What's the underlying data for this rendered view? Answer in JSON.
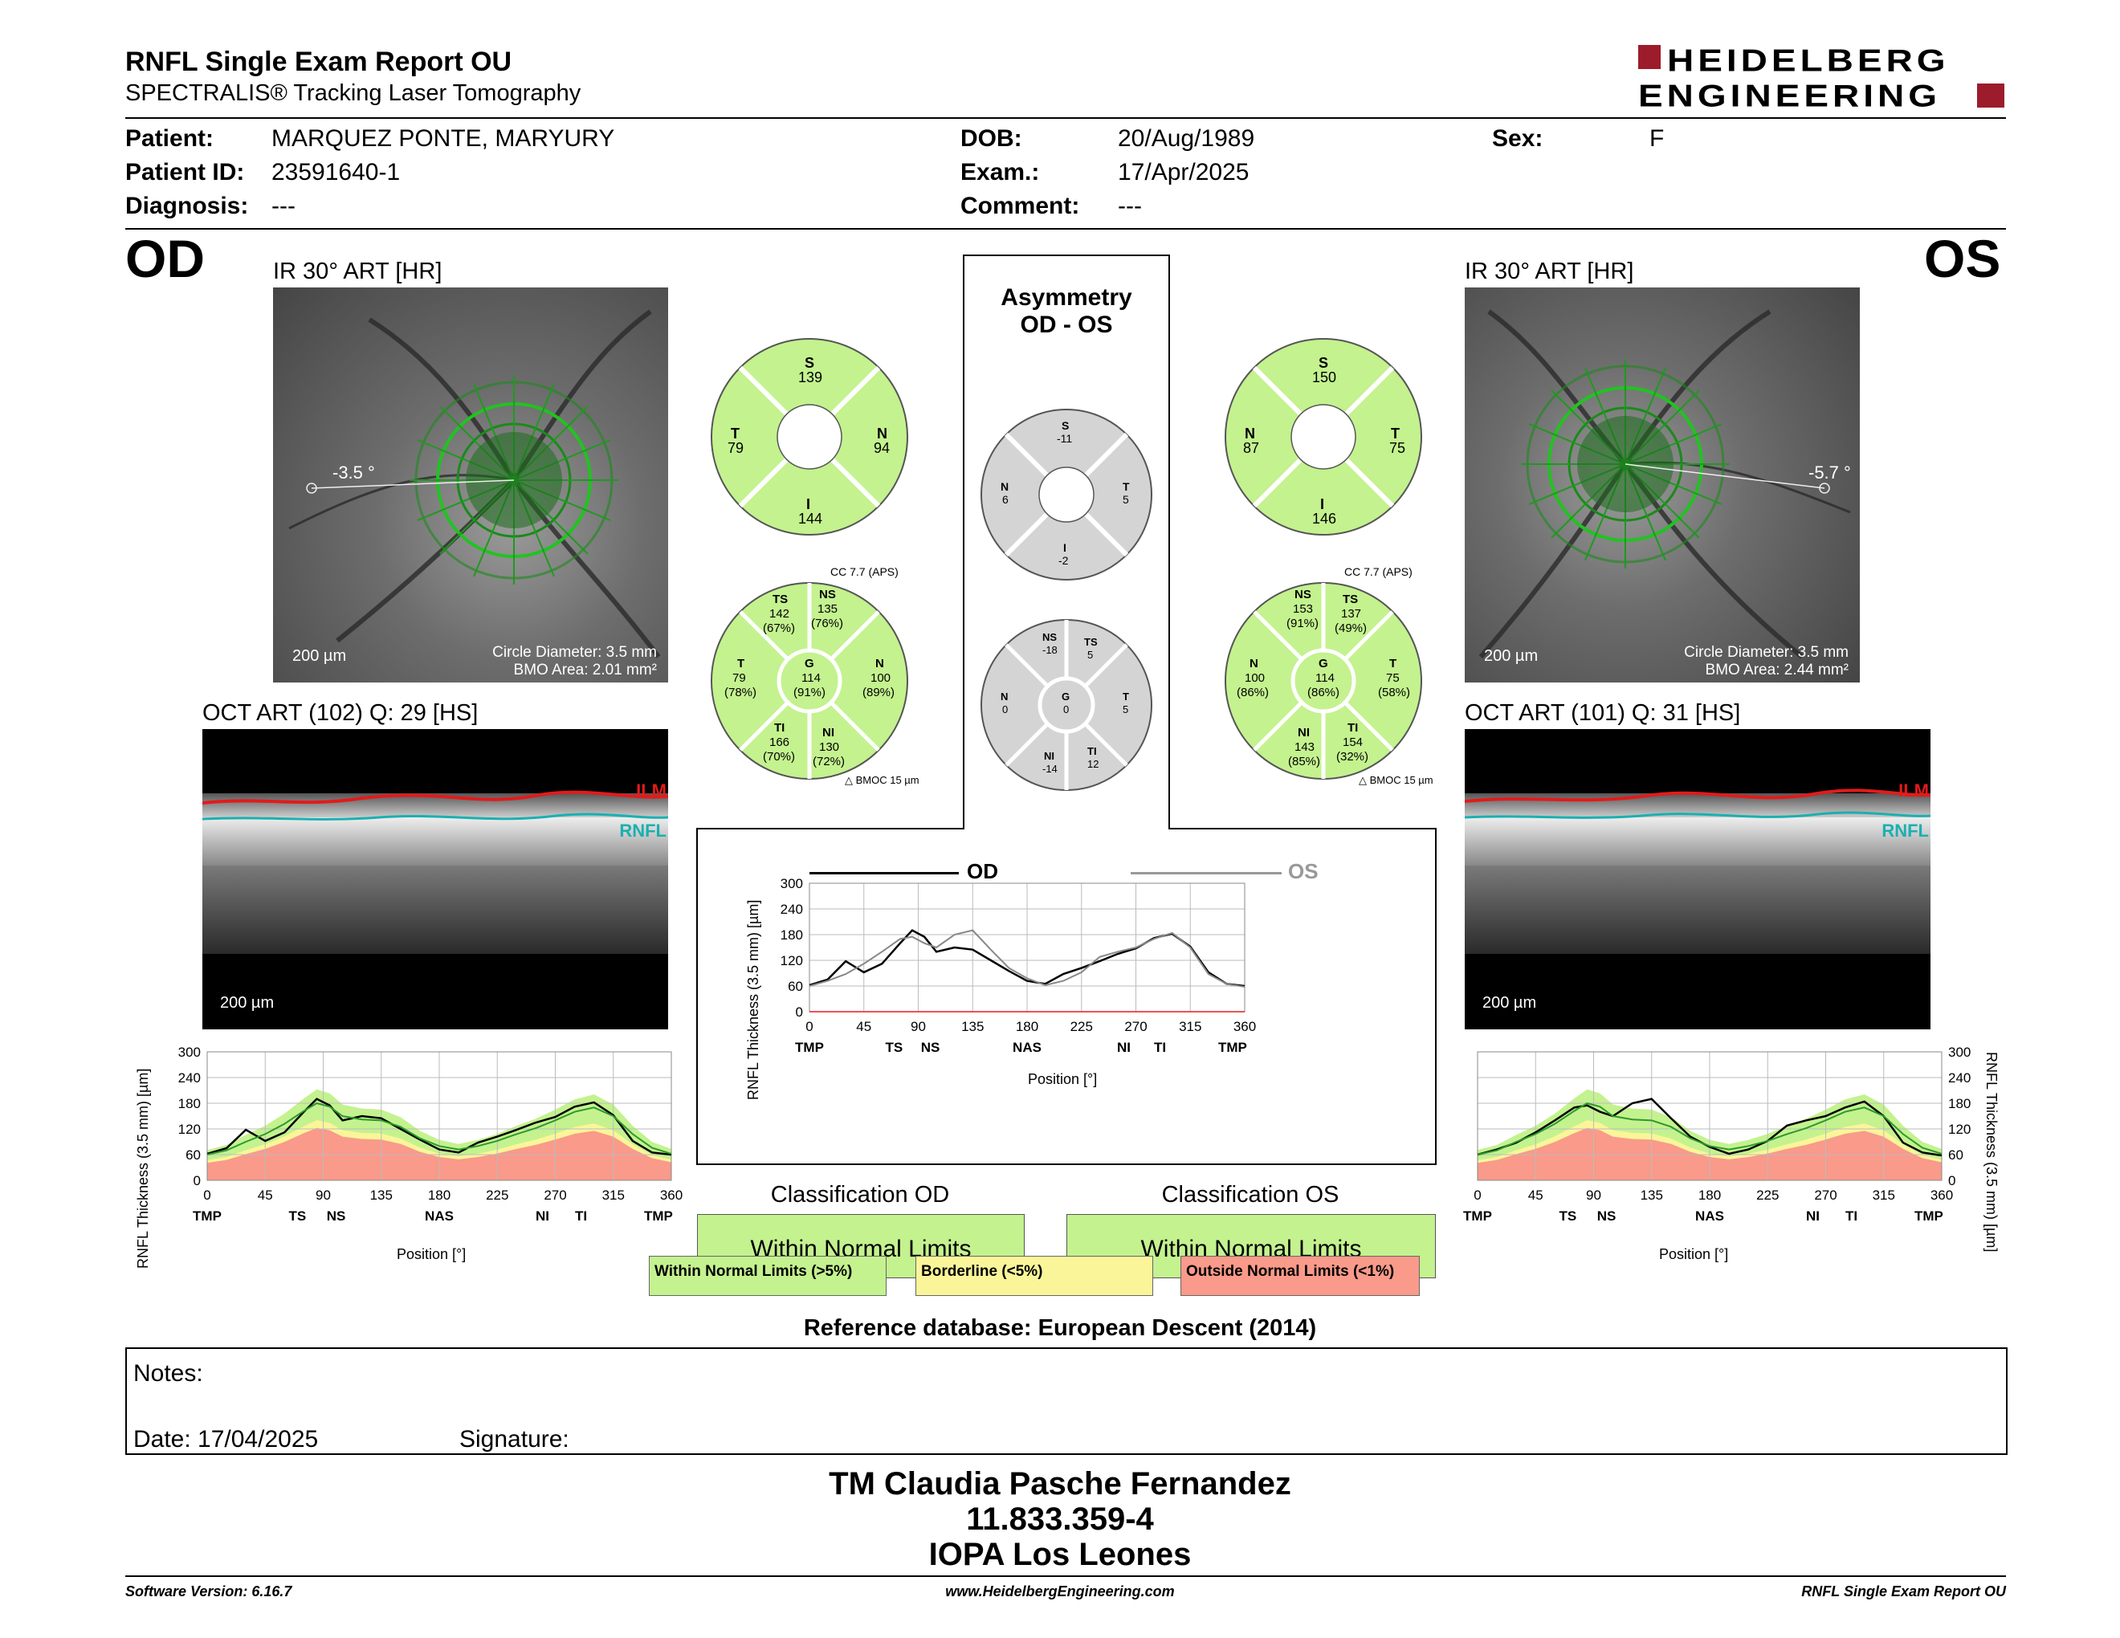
{
  "header": {
    "title": "RNFL Single Exam Report OU",
    "subtitle": "SPECTRALIS® Tracking Laser Tomography",
    "brand_line1": "HEIDELBERG",
    "brand_line2": "ENGINEERING"
  },
  "patient": {
    "patient_label": "Patient:",
    "patient_value": "MARQUEZ PONTE, MARYURY",
    "id_label": "Patient ID:",
    "id_value": "23591640-1",
    "diagnosis_label": "Diagnosis:",
    "diagnosis_value": "---",
    "dob_label": "DOB:",
    "dob_value": "20/Aug/1989",
    "exam_label": "Exam.:",
    "exam_value": "17/Apr/2025",
    "comment_label": "Comment:",
    "comment_value": "---",
    "sex_label": "Sex:",
    "sex_value": "F"
  },
  "od": {
    "eye": "OD",
    "ir_label": "IR 30° ART [HR]",
    "angle": "-3.5 °",
    "scale": "200 µm",
    "circle_diameter": "Circle Diameter: 3.5 mm",
    "bmo_area": "BMO Area: 2.01 mm²",
    "oct_label": "OCT ART (102) Q: 29 [HS]",
    "oct_scale": "200 µm",
    "ilm": "ILM",
    "rnfl": "RNFL",
    "classification_title": "Classification OD",
    "classification_value": "Within Normal Limits",
    "quad": {
      "S": "139",
      "T": "79",
      "N": "94",
      "I": "144"
    },
    "sector": {
      "TS": "142",
      "TS_p": "(67%)",
      "NS": "135",
      "NS_p": "(76%)",
      "T": "79",
      "T_p": "(78%)",
      "G": "114",
      "G_p": "(91%)",
      "N": "100",
      "N_p": "(89%)",
      "TI": "166",
      "TI_p": "(70%)",
      "NI": "130",
      "NI_p": "(72%)"
    },
    "cc": "CC 7.7 (APS)",
    "bmoc": "BMOC 15 µm"
  },
  "os": {
    "eye": "OS",
    "ir_label": "IR 30° ART [HR]",
    "angle": "-5.7 °",
    "scale": "200 µm",
    "circle_diameter": "Circle Diameter: 3.5 mm",
    "bmo_area": "BMO Area: 2.44 mm²",
    "oct_label": "OCT ART (101) Q: 31 [HS]",
    "oct_scale": "200 µm",
    "ilm": "ILM",
    "rnfl": "RNFL",
    "classification_title": "Classification OS",
    "classification_value": "Within Normal Limits",
    "quad": {
      "S": "150",
      "N": "87",
      "T": "75",
      "I": "146"
    },
    "sector": {
      "NS": "153",
      "NS_p": "(91%)",
      "TS": "137",
      "TS_p": "(49%)",
      "N": "100",
      "N_p": "(86%)",
      "G": "114",
      "G_p": "(86%)",
      "T": "75",
      "T_p": "(58%)",
      "NI": "143",
      "NI_p": "(85%)",
      "TI": "154",
      "TI_p": "(32%)"
    },
    "cc": "CC 7.7 (APS)",
    "bmoc": "BMOC 15 µm"
  },
  "asymmetry": {
    "title1": "Asymmetry",
    "title2": "OD - OS",
    "quad": {
      "S": "-11",
      "N": "6",
      "T": "5",
      "I": "-2"
    },
    "sector": {
      "NS": "-18",
      "TS": "5",
      "N": "0",
      "G": "0",
      "T": "5",
      "NI": "-14",
      "TI": "12"
    }
  },
  "chart_labels": {
    "ylabel": "RNFL Thickness (3.5 mm) [µm]",
    "xlabel": "Position [°]",
    "od_legend": "OD",
    "os_legend": "OS"
  },
  "chart_data": [
    {
      "type": "line",
      "id": "od-profile",
      "x": [
        0,
        15,
        30,
        45,
        60,
        75,
        85,
        95,
        105,
        120,
        135,
        150,
        165,
        180,
        195,
        210,
        225,
        240,
        255,
        270,
        285,
        300,
        315,
        330,
        345,
        360
      ],
      "series": [
        {
          "values": [
            62,
            75,
            118,
            92,
            112,
            160,
            190,
            175,
            140,
            150,
            145,
            120,
            95,
            72,
            65,
            88,
            102,
            118,
            135,
            148,
            172,
            182,
            152,
            92,
            65,
            60
          ]
        },
        {
          "values": [
            60,
            70,
            90,
            108,
            132,
            162,
            180,
            172,
            150,
            142,
            140,
            125,
            98,
            80,
            72,
            80,
            92,
            108,
            122,
            140,
            160,
            170,
            150,
            108,
            76,
            62
          ]
        }
      ],
      "ylim": [
        0,
        300
      ],
      "xticks": [
        "0",
        "45",
        "90",
        "135",
        "180",
        "225",
        "270",
        "315",
        "360"
      ],
      "yticks": [
        "0",
        "60",
        "120",
        "180",
        "240",
        "300"
      ],
      "sector_ticks": [
        "TMP",
        "TS",
        "NS",
        "NAS",
        "NI",
        "TI",
        "TMP"
      ]
    },
    {
      "type": "line",
      "id": "os-profile",
      "x": [
        0,
        15,
        30,
        45,
        60,
        75,
        85,
        95,
        105,
        120,
        135,
        150,
        165,
        180,
        195,
        210,
        225,
        240,
        255,
        270,
        285,
        300,
        315,
        330,
        345,
        360
      ],
      "series": [
        {
          "values": [
            60,
            72,
            88,
            112,
            140,
            170,
            175,
            160,
            150,
            180,
            190,
            145,
            102,
            78,
            62,
            72,
            92,
            128,
            140,
            150,
            170,
            184,
            150,
            88,
            65,
            58
          ]
        },
        {
          "values": [
            60,
            70,
            90,
            108,
            132,
            162,
            180,
            172,
            150,
            142,
            140,
            125,
            98,
            80,
            72,
            80,
            92,
            108,
            122,
            140,
            160,
            170,
            150,
            108,
            76,
            62
          ]
        }
      ],
      "ylim": [
        0,
        300
      ],
      "xticks": [
        "0",
        "45",
        "90",
        "135",
        "180",
        "225",
        "270",
        "315",
        "360"
      ],
      "yticks": [
        "0",
        "60",
        "120",
        "180",
        "240",
        "300"
      ],
      "sector_ticks": [
        "TMP",
        "TS",
        "NS",
        "NAS",
        "NI",
        "TI",
        "TMP"
      ]
    },
    {
      "type": "line",
      "id": "asymmetry-profile",
      "x": [
        0,
        15,
        30,
        45,
        60,
        75,
        85,
        95,
        105,
        120,
        135,
        150,
        165,
        180,
        195,
        210,
        225,
        240,
        255,
        270,
        285,
        300,
        315,
        330,
        345,
        360
      ],
      "series": [
        {
          "name": "OD",
          "values": [
            62,
            75,
            118,
            92,
            112,
            160,
            190,
            175,
            140,
            150,
            145,
            120,
            95,
            72,
            65,
            88,
            102,
            118,
            135,
            148,
            172,
            182,
            152,
            92,
            65,
            60
          ]
        },
        {
          "name": "OS",
          "values": [
            60,
            72,
            88,
            112,
            140,
            170,
            175,
            160,
            150,
            180,
            190,
            145,
            102,
            78,
            62,
            72,
            92,
            128,
            140,
            150,
            170,
            184,
            150,
            88,
            65,
            58
          ]
        }
      ],
      "ylim": [
        0,
        300
      ],
      "xticks": [
        "0",
        "45",
        "90",
        "135",
        "180",
        "225",
        "270",
        "315",
        "360"
      ],
      "yticks": [
        "0",
        "60",
        "120",
        "180",
        "240",
        "300"
      ],
      "sector_ticks": [
        "TMP",
        "TS",
        "NS",
        "NAS",
        "NI",
        "TI",
        "TMP"
      ]
    }
  ],
  "legend": {
    "wnl": "Within Normal Limits (>5%)",
    "borderline": "Borderline (<5%)",
    "onl": "Outside Normal Limits (<1%)"
  },
  "reference": "Reference database: European Descent (2014)",
  "notes": {
    "notes_label": "Notes:",
    "date_label": "Date: 17/04/2025",
    "signature_label": "Signature:"
  },
  "signature": {
    "line1": "TM Claudia Pasche Fernandez",
    "line2": "11.833.359-4",
    "line3": "IOPA Los Leones"
  },
  "footer": {
    "software": "Software Version: 6.16.7",
    "url": "www.HeidelbergEngineering.com",
    "report": "RNFL Single Exam Report OU"
  },
  "colors": {
    "normal_green": "#c4f28f",
    "borderline_yellow": "#fbf59a",
    "outside_red": "#f99a8a",
    "gray_sector": "#d4d4d4",
    "brand_red": "#9c1c2c"
  }
}
